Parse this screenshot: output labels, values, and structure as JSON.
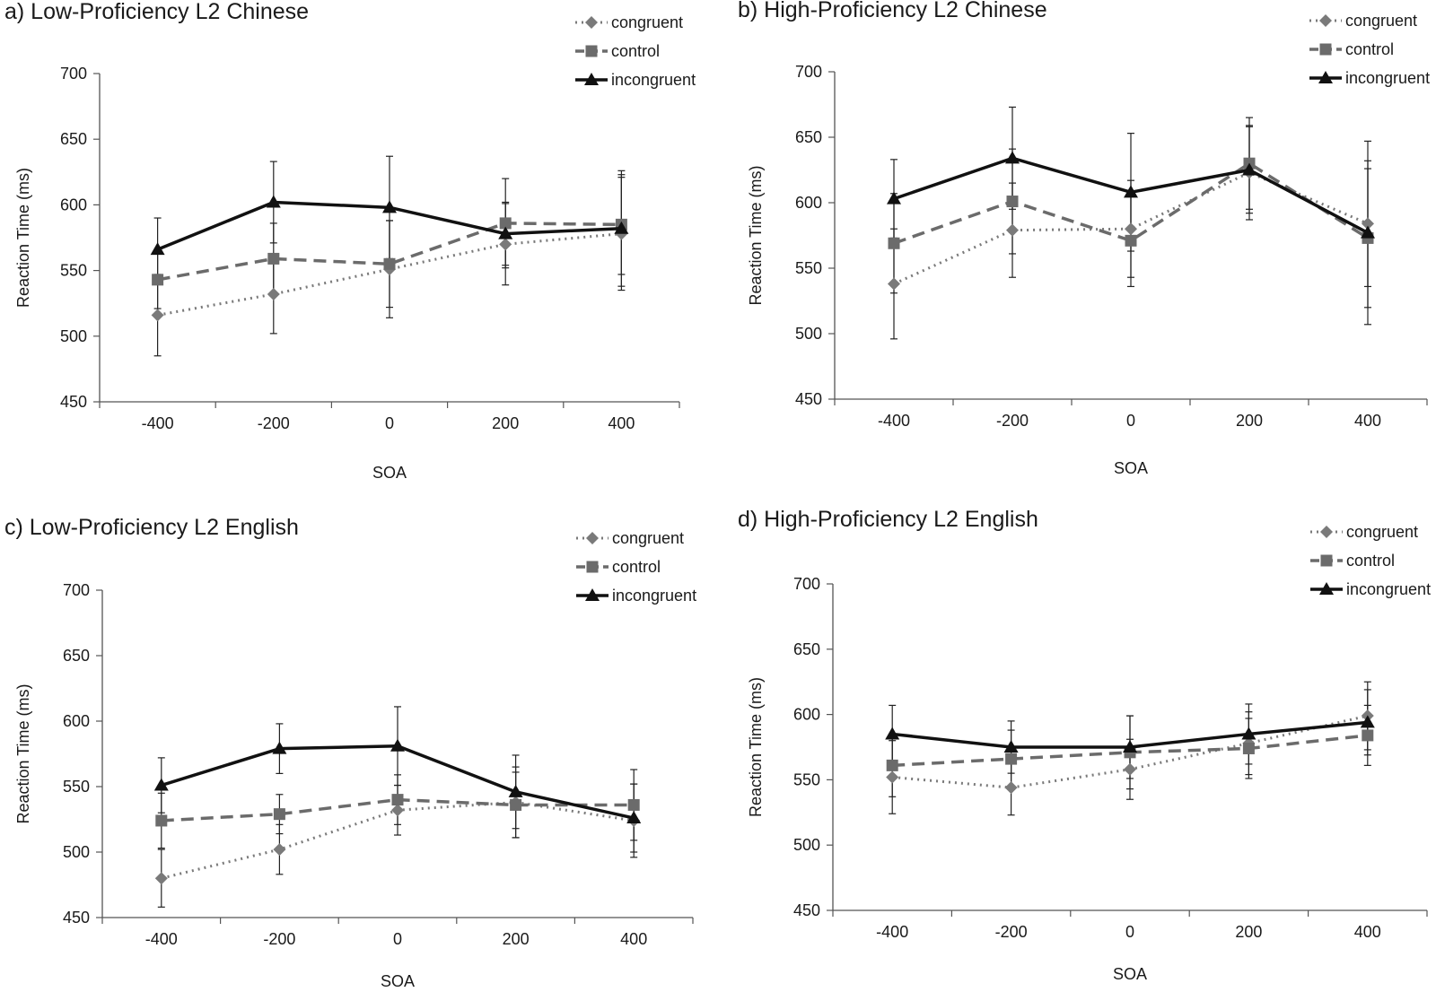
{
  "chart_data": [
    {
      "type": "line",
      "title": "a) Low-Proficiency L2 Chinese",
      "xlabel": "SOA",
      "ylabel": "Reaction Time (ms)",
      "categories": [
        "-400",
        "-200",
        "0",
        "200",
        "400"
      ],
      "ylim": [
        450,
        700
      ],
      "yticks": [
        "450",
        "500",
        "550",
        "600",
        "650",
        "700"
      ],
      "legend_position": "top-right",
      "grid": false,
      "series": [
        {
          "name": "congruent",
          "values": [
            516,
            532,
            551,
            570,
            578
          ],
          "error": [
            31,
            30,
            37,
            31,
            43
          ],
          "color": "#7a7a7a"
        },
        {
          "name": "control",
          "values": [
            543,
            559,
            555,
            586,
            585
          ],
          "error": [
            22,
            27,
            33,
            34,
            38
          ],
          "color": "#6b6b6b"
        },
        {
          "name": "incongruent",
          "values": [
            566,
            602,
            598,
            578,
            582
          ],
          "error": [
            24,
            31,
            39,
            24,
            44
          ],
          "color": "#111111"
        }
      ]
    },
    {
      "type": "line",
      "title": "b) High-Proficiency L2 Chinese",
      "xlabel": "SOA",
      "ylabel": "Reaction Time (ms)",
      "categories": [
        "-400",
        "-200",
        "0",
        "200",
        "400"
      ],
      "ylim": [
        450,
        700
      ],
      "yticks": [
        "450",
        "500",
        "550",
        "600",
        "650",
        "700"
      ],
      "legend_position": "top-right",
      "grid": false,
      "series": [
        {
          "name": "congruent",
          "values": [
            538,
            579,
            580,
            623,
            584
          ],
          "error": [
            42,
            36,
            37,
            36,
            48
          ],
          "color": "#7a7a7a"
        },
        {
          "name": "control",
          "values": [
            569,
            601,
            571,
            630,
            573
          ],
          "error": [
            38,
            40,
            35,
            35,
            53
          ],
          "color": "#6b6b6b"
        },
        {
          "name": "incongruent",
          "values": [
            603,
            634,
            608,
            625,
            577
          ],
          "error": [
            30,
            39,
            45,
            33,
            70
          ],
          "color": "#111111"
        }
      ]
    },
    {
      "type": "line",
      "title": "c) Low-Proficiency L2 English",
      "xlabel": "SOA",
      "ylabel": "Reaction Time (ms)",
      "categories": [
        "-400",
        "-200",
        "0",
        "200",
        "400"
      ],
      "ylim": [
        450,
        700
      ],
      "yticks": [
        "450",
        "500",
        "550",
        "600",
        "650",
        "700"
      ],
      "legend_position": "top-right",
      "grid": false,
      "series": [
        {
          "name": "congruent",
          "values": [
            480,
            502,
            532,
            538,
            524
          ],
          "error": [
            22,
            19,
            19,
            27,
            28
          ],
          "color": "#7a7a7a"
        },
        {
          "name": "control",
          "values": [
            524,
            529,
            540,
            536,
            536
          ],
          "error": [
            21,
            15,
            19,
            25,
            27
          ],
          "color": "#6b6b6b"
        },
        {
          "name": "incongruent",
          "values": [
            551,
            579,
            581,
            546,
            526
          ],
          "error": [
            21,
            19,
            30,
            28,
            26
          ],
          "color": "#111111"
        }
      ]
    },
    {
      "type": "line",
      "title": "d) High-Proficiency L2 English",
      "xlabel": "SOA",
      "ylabel": "Reaction Time (ms)",
      "categories": [
        "-400",
        "-200",
        "0",
        "200",
        "400"
      ],
      "ylim": [
        450,
        700
      ],
      "yticks": [
        "450",
        "500",
        "550",
        "600",
        "650",
        "700"
      ],
      "legend_position": "top-right",
      "grid": false,
      "series": [
        {
          "name": "congruent",
          "values": [
            552,
            544,
            558,
            578,
            599
          ],
          "error": [
            28,
            21,
            23,
            24,
            26
          ],
          "color": "#7a7a7a"
        },
        {
          "name": "control",
          "values": [
            561,
            566,
            571,
            574,
            584
          ],
          "error": [
            24,
            22,
            28,
            23,
            23
          ],
          "color": "#6b6b6b"
        },
        {
          "name": "incongruent",
          "values": [
            585,
            575,
            575,
            585,
            594
          ],
          "error": [
            22,
            20,
            24,
            23,
            25
          ],
          "color": "#111111"
        }
      ]
    }
  ]
}
